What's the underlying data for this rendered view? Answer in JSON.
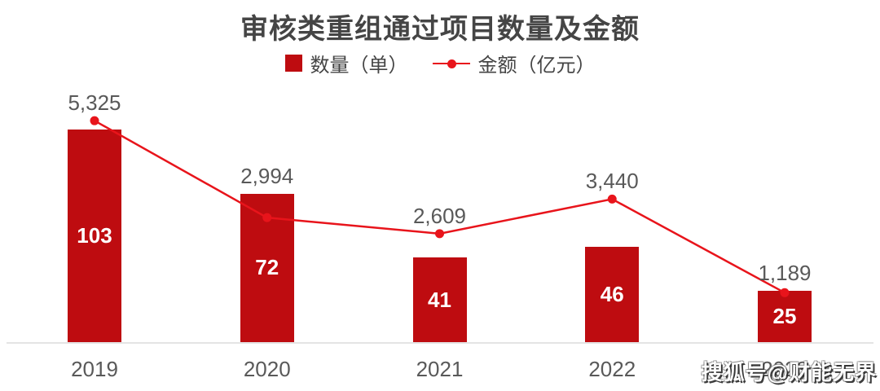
{
  "title": "审核类重组通过项目数量及金额",
  "legend": {
    "bar_series_label": "数量（单）",
    "line_series_label": "金额（亿元）"
  },
  "watermark": "搜狐号@财能无界",
  "colors": {
    "bar": "#be0c10",
    "line": "#e8141b",
    "title_text": "#454545",
    "data_label_text": "#595959",
    "bar_value_text": "#ffffff",
    "axis_line": "#e4e4e4"
  },
  "chart_data": {
    "type": "bar+line",
    "title": "审核类重组通过项目数量及金额",
    "categories": [
      "2019",
      "2020",
      "2021",
      "2022",
      "2023"
    ],
    "series": [
      {
        "name": "数量（单）",
        "type": "bar",
        "values": [
          103,
          72,
          41,
          46,
          25
        ],
        "labels": [
          "103",
          "72",
          "41",
          "46",
          "25"
        ],
        "label_position": "inside-center",
        "color": "#be0c10"
      },
      {
        "name": "金额（亿元）",
        "type": "line",
        "values": [
          5325,
          2994,
          2609,
          3440,
          1189
        ],
        "labels": [
          "5,325",
          "2,994",
          "2,609",
          "3,440",
          "1,189"
        ],
        "label_position": "above",
        "color": "#e8141b"
      }
    ],
    "legend_position": "top-center",
    "grid": false,
    "y_axis_visible": false,
    "secondary_y_axis_visible": false,
    "x_axis_line": true
  }
}
